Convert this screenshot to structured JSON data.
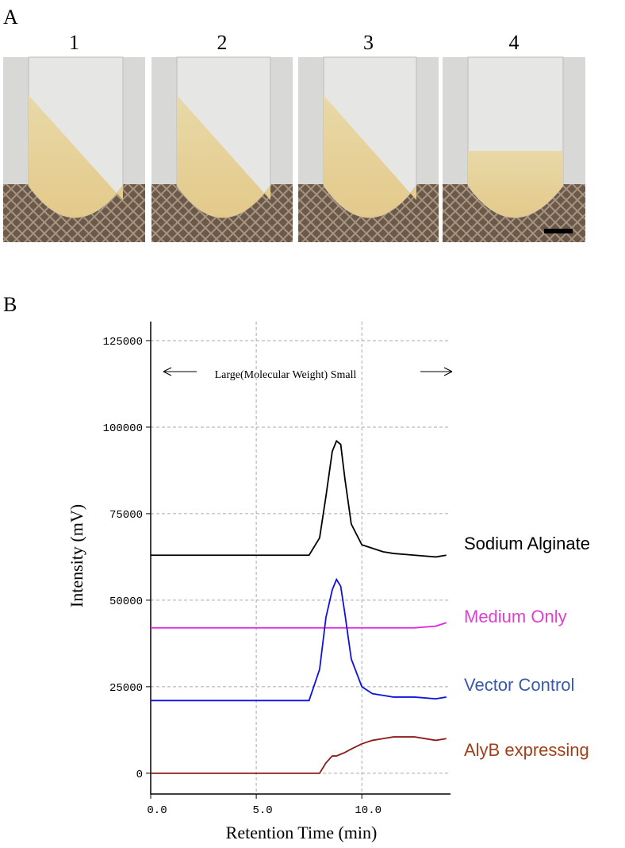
{
  "panel_a": {
    "label": "A",
    "tubes": [
      "1",
      "2",
      "3",
      "4"
    ]
  },
  "chart_data": {
    "type": "line",
    "panel_label": "B",
    "annotation": "Large(Molecular  Weight)  Small",
    "xlabel": "Retention Time (min)",
    "ylabel": "Intensity (mV)",
    "x": [
      0,
      2,
      4,
      6,
      7.5,
      8.0,
      8.3,
      8.6,
      8.8,
      9.0,
      9.2,
      9.5,
      10,
      10.5,
      11,
      11.5,
      12.5,
      13.5,
      14
    ],
    "series": [
      {
        "name": "Sodium Alginate",
        "color": "#000000",
        "label_color": "#000000",
        "values": [
          63000,
          63000,
          63000,
          63000,
          63000,
          68000,
          80000,
          93000,
          96000,
          95000,
          85000,
          72000,
          66000,
          65000,
          64000,
          63500,
          63000,
          62500,
          63000
        ]
      },
      {
        "name": "Medium Only",
        "color": "#e020e0",
        "label_color": "#e040d0",
        "values": [
          42000,
          42000,
          42000,
          42000,
          42000,
          42000,
          42000,
          42000,
          42000,
          42000,
          42000,
          42000,
          42000,
          42000,
          42000,
          42000,
          42000,
          42500,
          43500
        ]
      },
      {
        "name": "Vector Control",
        "color": "#1010e0",
        "label_color": "#3a5aa8",
        "values": [
          21000,
          21000,
          21000,
          21000,
          21000,
          30000,
          45000,
          53000,
          56000,
          54000,
          46000,
          33000,
          25000,
          23000,
          22500,
          22000,
          22000,
          21500,
          22000
        ]
      },
      {
        "name": "AlyB expressing",
        "color": "#8b1a1a",
        "label_color": "#a0401a",
        "values": [
          0,
          0,
          0,
          0,
          0,
          0,
          3000,
          5000,
          5000,
          5500,
          6000,
          7000,
          8500,
          9500,
          10000,
          10500,
          10500,
          9500,
          10000
        ]
      }
    ],
    "xlim": [
      0,
      14.2
    ],
    "ylim": [
      -6000,
      130500
    ],
    "xticks": [
      {
        "value": 0,
        "label": "0.0"
      },
      {
        "value": 5,
        "label": "5.0"
      },
      {
        "value": 10,
        "label": "10.0"
      }
    ],
    "yticks": [
      0,
      25000,
      50000,
      75000,
      100000,
      125000
    ],
    "grid": true
  }
}
